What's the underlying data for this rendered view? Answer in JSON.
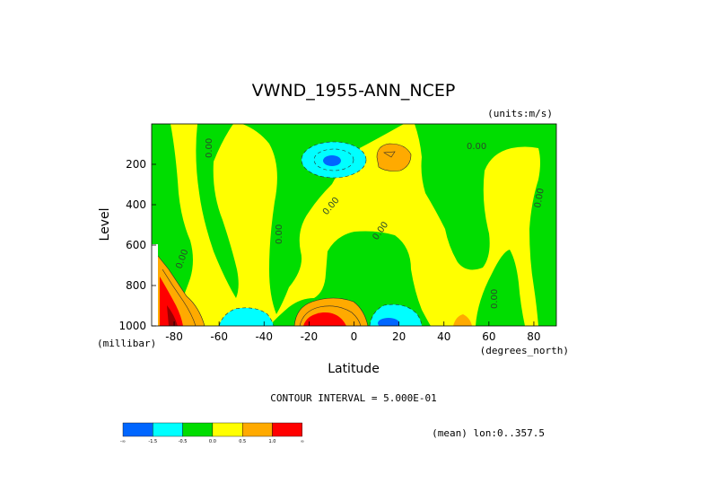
{
  "chart_data": {
    "type": "heatmap",
    "title": "VWND_1955-ANN_NCEP",
    "units_label": "(units:m/s)",
    "xlabel": "Latitude",
    "x_units_label": "(degrees_north)",
    "ylabel": "Level",
    "y_units_label": "(millibar)",
    "xlim": [
      -90,
      90
    ],
    "ylim": [
      1000,
      0
    ],
    "x_ticks": [
      -80,
      -60,
      -40,
      -20,
      0,
      20,
      40,
      60,
      80
    ],
    "y_ticks": [
      200,
      400,
      600,
      800,
      1000
    ],
    "grid": false,
    "contour_interval_text": "CONTOUR INTERVAL = 5.000E-01",
    "footer_text": "(mean) lon:0..357.5",
    "contour_labels": [
      "0.00"
    ],
    "colorbar": {
      "levels": [
        "-1.5",
        "-0.5",
        "0.0",
        "0.5",
        "1.0"
      ],
      "end_labels": [
        "-∞",
        "∞"
      ],
      "colors": [
        "#0066ff",
        "#00ffff",
        "#00dd00",
        "#ffff00",
        "#ffaa00",
        "#ff0000"
      ]
    },
    "features": [
      {
        "name": "negative core, upper tropics south",
        "x": -10,
        "y": 180,
        "value": -1.5
      },
      {
        "name": "negative region, upper tropics south",
        "x": -10,
        "y": 160,
        "value": -0.5
      },
      {
        "name": "positive region, upper subtropics north",
        "x": 17,
        "y": 140,
        "value": 0.5
      },
      {
        "name": "positive core, surface south tropics",
        "x": -14,
        "y": 990,
        "value": 1.5
      },
      {
        "name": "negative core, surface north tropics",
        "x": 16,
        "y": 990,
        "value": -1.5
      },
      {
        "name": "negative region, surface southern midlatitudes",
        "x": -50,
        "y": 970,
        "value": -0.5
      },
      {
        "name": "positive region, surface Antarctic coast",
        "x": -80,
        "y": 930,
        "value": 1.0
      }
    ]
  }
}
